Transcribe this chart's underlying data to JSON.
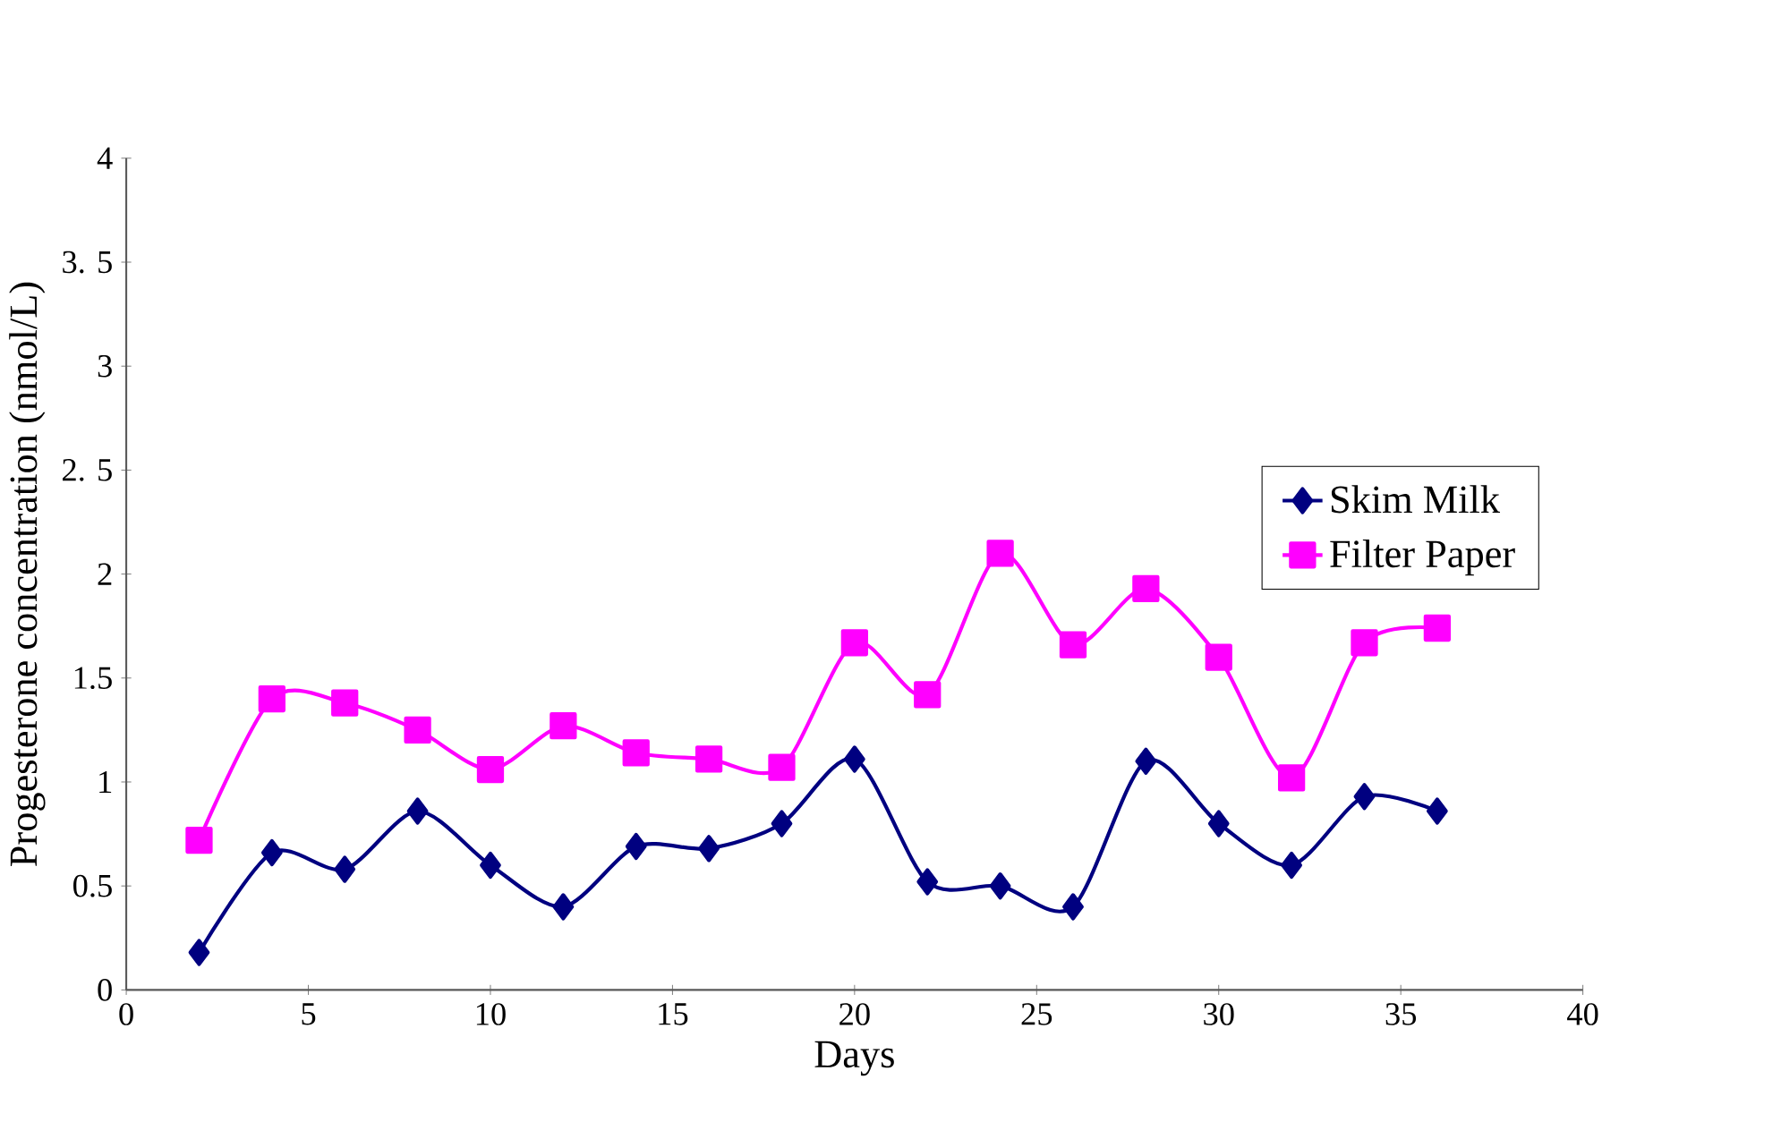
{
  "chart_data": {
    "type": "line",
    "xlabel": "Days",
    "ylabel": "Progesterone concentration (nmol/L)",
    "x": [
      2,
      4,
      6,
      8,
      10,
      12,
      14,
      16,
      18,
      20,
      22,
      24,
      26,
      28,
      30,
      32,
      34,
      36
    ],
    "series": [
      {
        "name": "Skim Milk",
        "color": "#000080",
        "marker": "diamond",
        "values": [
          0.18,
          0.66,
          0.58,
          0.86,
          0.6,
          0.4,
          0.69,
          0.68,
          0.8,
          1.11,
          0.52,
          0.5,
          0.4,
          1.1,
          0.8,
          0.6,
          0.93,
          0.86
        ]
      },
      {
        "name": "Filter Paper",
        "color": "#ff00ff",
        "marker": "square",
        "values": [
          0.72,
          1.4,
          1.38,
          1.25,
          1.06,
          1.27,
          1.14,
          1.11,
          1.07,
          1.67,
          1.42,
          2.1,
          1.66,
          1.93,
          1.6,
          1.02,
          1.67,
          1.74
        ]
      }
    ],
    "xlim": [
      0,
      40
    ],
    "xticks": [
      0,
      5,
      10,
      15,
      20,
      25,
      30,
      35,
      40
    ],
    "ylim": [
      0,
      4
    ],
    "yticks": [
      0,
      0.5,
      1,
      1.5,
      2,
      {
        "value": 2.5,
        "label": "2. 5"
      },
      3,
      {
        "value": 3.5,
        "label": "3. 5"
      },
      4
    ],
    "grid": false,
    "legend": "right",
    "line_style": "solid"
  }
}
